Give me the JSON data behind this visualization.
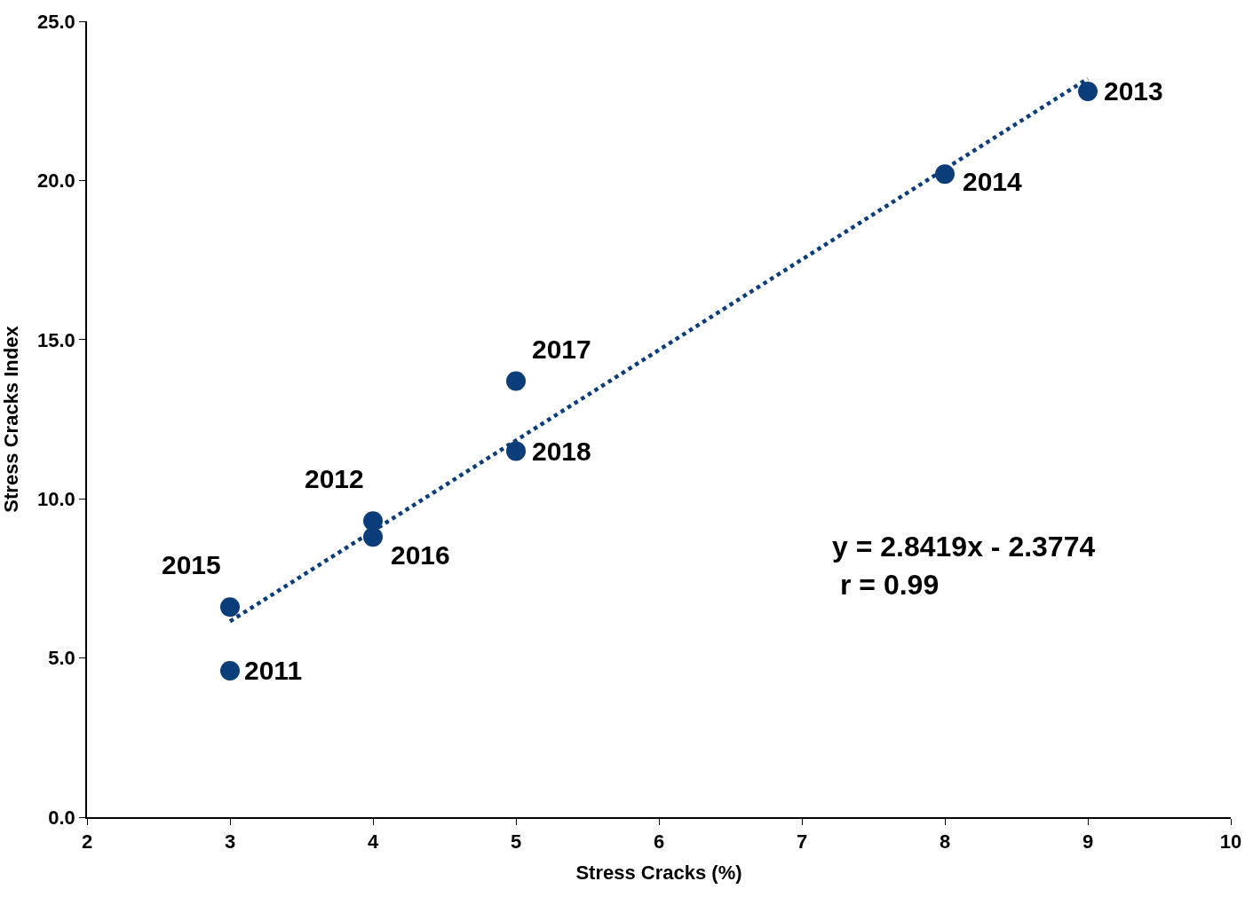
{
  "chart_data": {
    "type": "scatter",
    "xlabel": "Stress Cracks (%)",
    "ylabel": "Stress Cracks Index",
    "x": [
      3,
      4,
      9,
      8,
      3,
      4,
      5,
      5
    ],
    "series": [
      {
        "color": "#0b3d7a",
        "marker": "circle",
        "values": [
          4.6,
          9.3,
          22.8,
          20.2,
          6.6,
          8.8,
          13.7,
          11.5
        ]
      },
      {
        "type": "line",
        "color": "#0b3d7a",
        "line_style": "dotted",
        "marker": "none",
        "x": [
          3,
          9
        ],
        "values": [
          6.15,
          23.2
        ]
      }
    ],
    "annotations": [
      {
        "text": "2011",
        "x": 3,
        "y": 4.6
      },
      {
        "text": "2012",
        "x": 4,
        "y": 9.3
      },
      {
        "text": "2013",
        "x": 9,
        "y": 22.8
      },
      {
        "text": "2014",
        "x": 8,
        "y": 20.2
      },
      {
        "text": "2015",
        "x": 3,
        "y": 6.6
      },
      {
        "text": "2016",
        "x": 4,
        "y": 8.8
      },
      {
        "text": "2017",
        "x": 5,
        "y": 13.7
      },
      {
        "text": "2018",
        "x": 5,
        "y": 11.5
      },
      "y = 2.8419x - 2.3774",
      "r = 0.99"
    ],
    "xlim": [
      2,
      10
    ],
    "xticks": [
      2,
      3,
      4,
      5,
      6,
      7,
      8,
      9,
      10
    ],
    "ylim": [
      0,
      25
    ],
    "yticks": [
      {
        "value": 0,
        "label": "0.0"
      },
      {
        "value": 5,
        "label": "5.0"
      },
      {
        "value": 10,
        "label": "10.0"
      },
      {
        "value": 15,
        "label": "15.0"
      },
      {
        "value": 20,
        "label": "20.0"
      },
      {
        "value": 25,
        "label": "25.0"
      }
    ]
  }
}
